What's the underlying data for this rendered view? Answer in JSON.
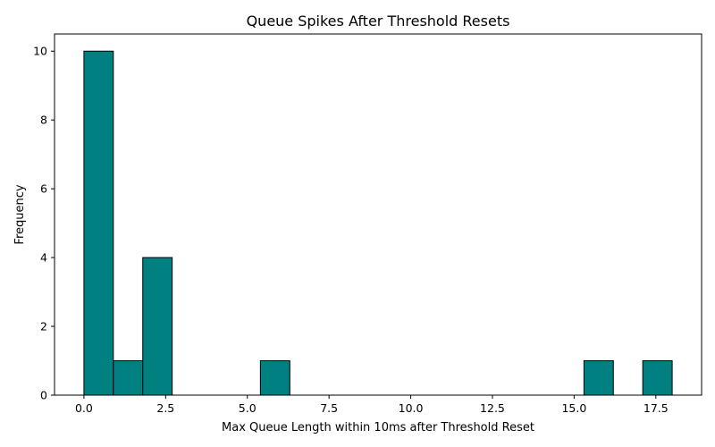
{
  "chart_data": {
    "type": "bar",
    "title": "Queue Spikes After Threshold Resets",
    "xlabel": "Max Queue Length within 10ms after Threshold Reset",
    "ylabel": "Frequency",
    "xlim": [
      -0.9,
      18.9
    ],
    "ylim": [
      0,
      10.5
    ],
    "xticks": [
      0.0,
      2.5,
      5.0,
      7.5,
      10.0,
      12.5,
      15.0,
      17.5
    ],
    "xtick_labels": [
      "0.0",
      "2.5",
      "5.0",
      "7.5",
      "10.0",
      "12.5",
      "15.0",
      "17.5"
    ],
    "yticks": [
      0,
      2,
      4,
      6,
      8,
      10
    ],
    "ytick_labels": [
      "0",
      "2",
      "4",
      "6",
      "8",
      "10"
    ],
    "bins": [
      {
        "x0": 0.0,
        "x1": 0.9,
        "count": 10
      },
      {
        "x0": 0.9,
        "x1": 1.8,
        "count": 1
      },
      {
        "x0": 1.8,
        "x1": 2.7,
        "count": 4
      },
      {
        "x0": 2.7,
        "x1": 3.6,
        "count": 0
      },
      {
        "x0": 3.6,
        "x1": 4.5,
        "count": 0
      },
      {
        "x0": 4.5,
        "x1": 5.4,
        "count": 0
      },
      {
        "x0": 5.4,
        "x1": 6.3,
        "count": 1
      },
      {
        "x0": 6.3,
        "x1": 7.2,
        "count": 0
      },
      {
        "x0": 7.2,
        "x1": 8.1,
        "count": 0
      },
      {
        "x0": 8.1,
        "x1": 9.0,
        "count": 0
      },
      {
        "x0": 9.0,
        "x1": 9.9,
        "count": 0
      },
      {
        "x0": 9.9,
        "x1": 10.8,
        "count": 0
      },
      {
        "x0": 10.8,
        "x1": 11.7,
        "count": 0
      },
      {
        "x0": 11.7,
        "x1": 12.6,
        "count": 0
      },
      {
        "x0": 12.6,
        "x1": 13.5,
        "count": 0
      },
      {
        "x0": 13.5,
        "x1": 14.4,
        "count": 0
      },
      {
        "x0": 14.4,
        "x1": 15.3,
        "count": 0
      },
      {
        "x0": 15.3,
        "x1": 16.2,
        "count": 1
      },
      {
        "x0": 16.2,
        "x1": 17.1,
        "count": 0
      },
      {
        "x0": 17.1,
        "x1": 18.0,
        "count": 1
      }
    ],
    "bar_color": "#008080",
    "edge_color": "#000000",
    "grid": false,
    "legend": "none"
  }
}
